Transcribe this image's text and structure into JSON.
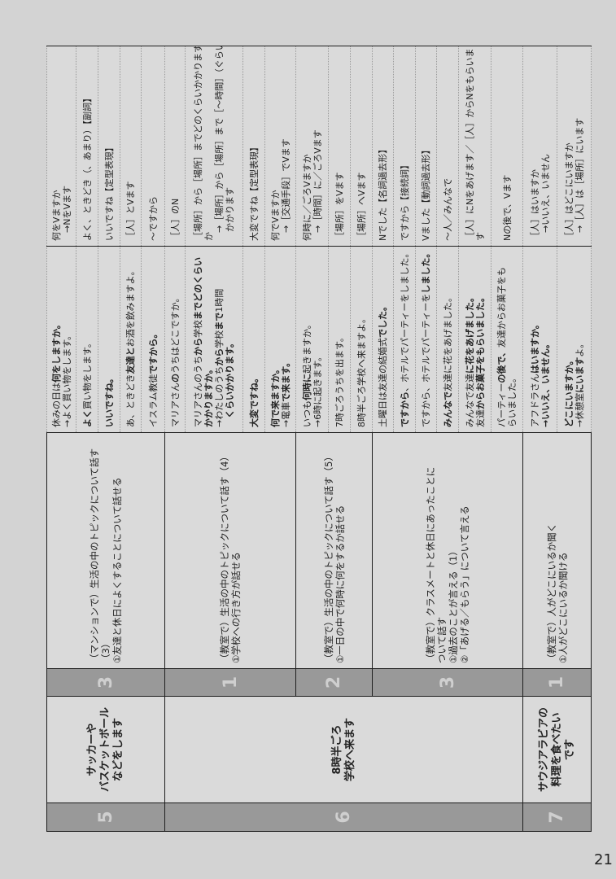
{
  "page_number": "21",
  "colors": {
    "band": "#999999",
    "band_text": "#cfcfcf",
    "cell": "#dadada",
    "page": "#d3d3d3"
  },
  "units": [
    {
      "number": "5",
      "title": [
        "サッカーや",
        "バスケットボール",
        "などをします"
      ],
      "lessons": [
        {
          "number": "3",
          "topic": [
            "（マンションで）生活の中のトピックについて話す（3）",
            "①友達と休日によくすることについて話せる"
          ],
          "rows": [
            {
              "example": [
                [
                  {
                    "t": "休みの日は"
                  },
                  {
                    "t": "何をしますか。",
                    "b": true
                  }
                ],
                [
                  {
                    "t": "→よく買い物をします。"
                  }
                ]
              ],
              "pattern": [
                "何をVますか",
                "→NをVます"
              ]
            },
            {
              "example": [
                [
                  {
                    "t": "よく",
                    "b": true
                  },
                  {
                    "t": "買い物をします。"
                  }
                ]
              ],
              "pattern": [
                "よく、ときどき（、あまり）【副詞】"
              ]
            },
            {
              "example": [
                [
                  {
                    "t": "いいですね。",
                    "b": true
                  }
                ]
              ],
              "pattern": [
                "いいですね【定型表現】"
              ]
            },
            {
              "example": [
                [
                  {
                    "t": "あ、ときどき"
                  },
                  {
                    "t": "友達と",
                    "b": true
                  },
                  {
                    "t": "お酒を飲みますよ。"
                  }
                ]
              ],
              "pattern": [
                "［人］とVます"
              ]
            },
            {
              "example": [
                [
                  {
                    "t": "イスラム教徒"
                  },
                  {
                    "t": "ですから。",
                    "b": true
                  }
                ]
              ],
              "pattern": [
                "～ですから"
              ]
            }
          ]
        }
      ]
    },
    {
      "number": "6",
      "title": [
        "8時半ごろ",
        "学校へ来ます"
      ],
      "lessons": [
        {
          "number": "1",
          "topic": [
            "（教室で）生活の中のトピックについて話す（4）",
            "①学校への行き方が話せる"
          ],
          "rows": [
            {
              "example": [
                [
                  {
                    "t": "マリアさん"
                  },
                  {
                    "t": "の",
                    "b": true
                  },
                  {
                    "t": "うちはどこですか。"
                  }
                ]
              ],
              "pattern": [
                "［人］のN"
              ]
            },
            {
              "example": [
                [
                  {
                    "t": "マリアさんのうち"
                  },
                  {
                    "t": "から",
                    "b": true
                  },
                  {
                    "t": "学校"
                  },
                  {
                    "t": "までどのくらい",
                    "b": true
                  }
                ],
                [
                  {
                    "t": "かかりますか。",
                    "b": true
                  }
                ],
                [
                  {
                    "t": "→わたしのうち"
                  },
                  {
                    "t": "から",
                    "b": true
                  },
                  {
                    "t": "学校"
                  },
                  {
                    "t": "まで",
                    "b": true
                  },
                  {
                    "t": "1時間"
                  }
                ],
                [
                  {
                    "t": "　くらいかかります。",
                    "b": true
                  }
                ]
              ],
              "pattern": [
                "［場所］から［場所］までどのくらいかかります",
                "か",
                "→［場所］から［場所］まで［～時間］（ぐらい）",
                "　かかります"
              ]
            },
            {
              "example": [
                [
                  {
                    "t": "大変ですね。",
                    "b": true
                  }
                ]
              ],
              "pattern": [
                "大変ですね【定型表現】"
              ]
            },
            {
              "example": [
                [
                  {
                    "t": "何で来ますか。",
                    "b": true
                  }
                ],
                [
                  {
                    "t": "→電車"
                  },
                  {
                    "t": "で来ます。",
                    "b": true
                  }
                ]
              ],
              "pattern": [
                "何でVますか",
                "→［交通手段］でVます"
              ]
            }
          ]
        },
        {
          "number": "2",
          "topic": [
            "（教室で）生活の中のトピックについて話す（5）",
            "①一日の中で何時に何をするか話せる"
          ],
          "rows": [
            {
              "example": [
                [
                  {
                    "t": "いつも"
                  },
                  {
                    "t": "何時に",
                    "b": true
                  },
                  {
                    "t": "起きますか。"
                  }
                ],
                [
                  {
                    "t": "→6時に起きます。"
                  }
                ]
              ],
              "pattern": [
                "何時に／ごろVますか",
                "→［時間］に／ごろVます"
              ]
            },
            {
              "example": [
                [
                  {
                    "t": "7時ごろうちを出ます。"
                  }
                ]
              ],
              "pattern": [
                "［場所］をVます"
              ]
            },
            {
              "example": [
                [
                  {
                    "t": "8時半ごろ学校へ来ますよ。"
                  }
                ]
              ],
              "pattern": [
                "［場所］へVます"
              ]
            }
          ]
        },
        {
          "number": "3",
          "topic": [
            "（教室で）クラスメートと休日にあったことに",
            "ついて話す",
            "①過去のことが言える（1）",
            "②「あげる／もらう」について言える"
          ],
          "rows": [
            {
              "example": [
                [
                  {
                    "t": "土曜日は友達の結婚式"
                  },
                  {
                    "t": "でした。",
                    "b": true
                  }
                ]
              ],
              "pattern": [
                "Nでした【名詞過去形】"
              ]
            },
            {
              "example": [
                [
                  {
                    "t": "ですから",
                    "b": true
                  },
                  {
                    "t": "、ホテルでパーティーをしました。"
                  }
                ]
              ],
              "pattern": [
                "ですから【接続詞】"
              ]
            },
            {
              "example": [
                [
                  {
                    "t": "ですから、ホテルでパーティーを"
                  },
                  {
                    "t": "しました。",
                    "b": true
                  }
                ]
              ],
              "pattern": [
                "Vました【動詞過去形】"
              ]
            },
            {
              "example": [
                [
                  {
                    "t": "みんなで",
                    "b": true
                  },
                  {
                    "t": "友達に花をあげました。"
                  }
                ]
              ],
              "pattern": [
                "～人／みんなで"
              ]
            },
            {
              "example": [
                [
                  {
                    "t": "みんなで友達"
                  },
                  {
                    "t": "に花をあげました。",
                    "b": true
                  }
                ],
                [
                  {
                    "t": "友達"
                  },
                  {
                    "t": "からお菓子をもらいました。",
                    "b": true
                  }
                ]
              ],
              "pattern": [
                "［人］にNをあげます／［人］からNをもらいま",
                "す"
              ]
            },
            {
              "example": [
                [
                  {
                    "t": "パーティー"
                  },
                  {
                    "t": "の後で、",
                    "b": true
                  },
                  {
                    "t": "友達からお菓子をも"
                  }
                ],
                [
                  {
                    "t": "らいました。"
                  }
                ]
              ],
              "pattern": [
                "Nの後で、Vます"
              ]
            }
          ]
        }
      ]
    },
    {
      "number": "7",
      "title": [
        "サウジアラビアの",
        "料理を食べたい",
        "です"
      ],
      "lessons": [
        {
          "number": "1",
          "topic": [
            "（教室で）人がどこにいるか聞く",
            "①人がどこにいるか聞ける"
          ],
          "rows": [
            {
              "example": [
                [
                  {
                    "t": "アフドラさん"
                  },
                  {
                    "t": "はいますか。",
                    "b": true
                  }
                ],
                [
                  {
                    "t": "→いいえ、いません。",
                    "b": true
                  }
                ]
              ],
              "pattern": [
                "［人］はいますか",
                "→いいえ、いません"
              ]
            },
            {
              "example": [
                [
                  {
                    "t": "どこにいますか。",
                    "b": true
                  }
                ],
                [
                  {
                    "t": "→休憩室"
                  },
                  {
                    "t": "にいます",
                    "b": true
                  },
                  {
                    "t": "よ。"
                  }
                ]
              ],
              "pattern": [
                "［人］はどこにいますか",
                "→［人］は［場所］にいます"
              ]
            }
          ]
        }
      ]
    }
  ]
}
